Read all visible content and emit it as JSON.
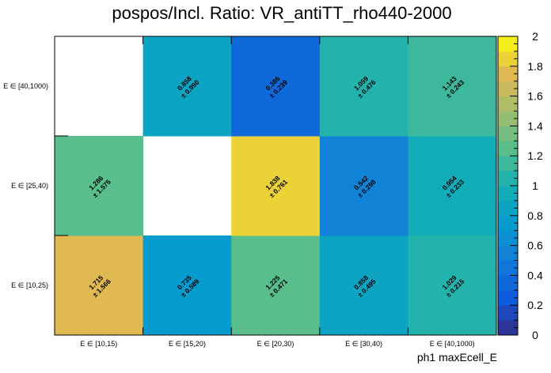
{
  "chart_data": {
    "type": "heatmap",
    "title": "pospos/Incl. Ratio: VR_antiTT_rho440-2000",
    "xlabel": "ph1 maxEcell_E",
    "ylabel": "",
    "x_categories": [
      "E ∈ [10,15)",
      "E ∈ [15,20)",
      "E ∈ [20,30)",
      "E ∈ [30,40)",
      "E ∈ [40,1000)"
    ],
    "y_categories": [
      "E ∈ [10,25)",
      "E ∈ [25,40)",
      "E ∈ [40,1000)"
    ],
    "zlim": [
      0,
      2
    ],
    "colorbar_ticks": [
      "0",
      "0.2",
      "0.4",
      "0.6",
      "0.8",
      "1",
      "1.2",
      "1.4",
      "1.6",
      "1.8",
      "2"
    ],
    "cells": [
      {
        "x": 0,
        "y": 0,
        "value": 1.715,
        "error": 1.566,
        "label": "1.715",
        "err_label": "± 1.566"
      },
      {
        "x": 1,
        "y": 0,
        "value": 0.735,
        "error": 0.589,
        "label": "0.735",
        "err_label": "± 0.589"
      },
      {
        "x": 2,
        "y": 0,
        "value": 1.225,
        "error": 0.471,
        "label": "1.225",
        "err_label": "± 0.471"
      },
      {
        "x": 3,
        "y": 0,
        "value": 0.858,
        "error": 0.495,
        "label": "0.858",
        "err_label": "± 0.495"
      },
      {
        "x": 4,
        "y": 0,
        "value": 1.029,
        "error": 0.215,
        "label": "1.029",
        "err_label": "± 0.215"
      },
      {
        "x": 0,
        "y": 1,
        "value": 1.286,
        "error": 1.575,
        "label": "1.286",
        "err_label": "± 1.575"
      },
      {
        "x": 2,
        "y": 1,
        "value": 1.838,
        "error": 0.761,
        "label": "1.838",
        "err_label": "± 0.761"
      },
      {
        "x": 3,
        "y": 1,
        "value": 0.542,
        "error": 0.298,
        "label": "0.542",
        "err_label": "± 0.298"
      },
      {
        "x": 4,
        "y": 1,
        "value": 0.954,
        "error": 0.233,
        "label": "0.954",
        "err_label": "± 0.233"
      },
      {
        "x": 1,
        "y": 2,
        "value": 0.858,
        "error": 0.99,
        "label": "0.858",
        "err_label": "± 0.990"
      },
      {
        "x": 2,
        "y": 2,
        "value": 0.386,
        "error": 0.239,
        "label": "0.386",
        "err_label": "± 0.239"
      },
      {
        "x": 3,
        "y": 2,
        "value": 1.059,
        "error": 0.476,
        "label": "1.059",
        "err_label": "± 0.476"
      },
      {
        "x": 4,
        "y": 2,
        "value": 1.143,
        "error": 0.243,
        "label": "1.143",
        "err_label": "± 0.243"
      }
    ]
  }
}
